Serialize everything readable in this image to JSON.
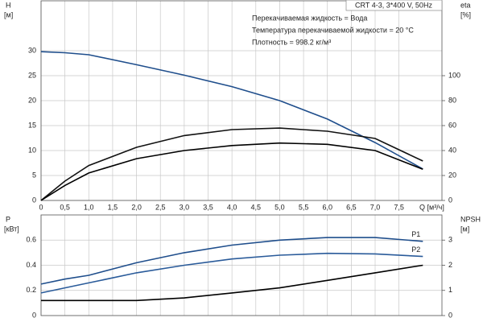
{
  "chart_data": [
    {
      "type": "line",
      "title": "CRT 4-3, 3*400 V, 50Hz",
      "annotations": [
        "Перекачиваемая жидкость = Вода",
        "Температура перекачиваемой жидкости = 20 °C",
        "Плотность = 998.2 кг/м³"
      ],
      "y_label": "H",
      "y_unit": "[м]",
      "y2_label": "eta",
      "y2_unit": "[%]",
      "x_label": "Q [м³/ч]",
      "x": [
        0,
        0.5,
        1,
        2,
        3,
        4,
        5,
        6,
        7,
        8
      ],
      "xlim": [
        0,
        8.4
      ],
      "xticks": [
        0,
        {
          "value": 0.5,
          "label": "0,5"
        },
        {
          "value": 1,
          "label": "1,0"
        },
        {
          "value": 1.5,
          "label": "1,5"
        },
        {
          "value": 2,
          "label": "2,0"
        },
        {
          "value": 2.5,
          "label": "2,5"
        },
        {
          "value": 3,
          "label": "3,0"
        },
        {
          "value": 3.5,
          "label": "3,5"
        },
        {
          "value": 4,
          "label": "4,0"
        },
        {
          "value": 4.5,
          "label": "4,5"
        },
        {
          "value": 5,
          "label": "5,0"
        },
        {
          "value": 5.5,
          "label": "5,5"
        },
        {
          "value": 6,
          "label": "6,0"
        },
        {
          "value": 6.5,
          "label": "6,5"
        },
        {
          "value": 7,
          "label": "7,0"
        },
        {
          "value": 7.5,
          "label": "7,5"
        }
      ],
      "ylim": [
        0,
        40
      ],
      "yticks": [
        0,
        5,
        10,
        15,
        20,
        25,
        30
      ],
      "y2lim": [
        0,
        160
      ],
      "y2ticks": [
        0,
        20,
        40,
        60,
        80,
        100
      ],
      "grid": true,
      "series": [
        {
          "color": "#1f4e8c",
          "values": [
            29.8,
            29.6,
            29.2,
            27.2,
            25.1,
            22.8,
            20.0,
            16.3,
            11.6,
            6.3
          ]
        },
        {
          "color": "#111111",
          "axis": "y2",
          "values": [
            0,
            15.5,
            28,
            42.6,
            52,
            56.8,
            58,
            55.5,
            49.7,
            31.6
          ]
        },
        {
          "color": "#000000",
          "axis": "y2",
          "values": [
            0,
            12,
            22,
            33.5,
            40,
            44,
            46,
            45,
            40,
            25
          ]
        }
      ]
    },
    {
      "type": "line",
      "y_label": "P",
      "y_unit": "[кВт]",
      "y2_label": "NPSH",
      "y2_unit": "[м]",
      "x": [
        0,
        0.5,
        1,
        2,
        3,
        4,
        5,
        6,
        7,
        8
      ],
      "xlim": [
        0,
        8.4
      ],
      "ylim": [
        0,
        0.8
      ],
      "yticks": [
        0,
        0.2,
        0.4,
        0.6
      ],
      "y2lim": [
        0,
        4
      ],
      "y2ticks": [
        0,
        1,
        2,
        3
      ],
      "grid": true,
      "series": [
        {
          "name": "P1",
          "color": "#1f4e8c",
          "values": [
            0.25,
            0.29,
            0.32,
            0.42,
            0.5,
            0.56,
            0.6,
            0.62,
            0.62,
            0.59
          ]
        },
        {
          "name": "P2",
          "color": "#2a5b9a",
          "values": [
            0.18,
            0.22,
            0.26,
            0.34,
            0.4,
            0.45,
            0.48,
            0.495,
            0.49,
            0.47
          ]
        },
        {
          "color": "#000000",
          "axis": "y2",
          "values": [
            0.6,
            0.6,
            0.6,
            0.6,
            0.7,
            0.9,
            1.1,
            1.4,
            1.7,
            2.0
          ]
        }
      ]
    }
  ]
}
